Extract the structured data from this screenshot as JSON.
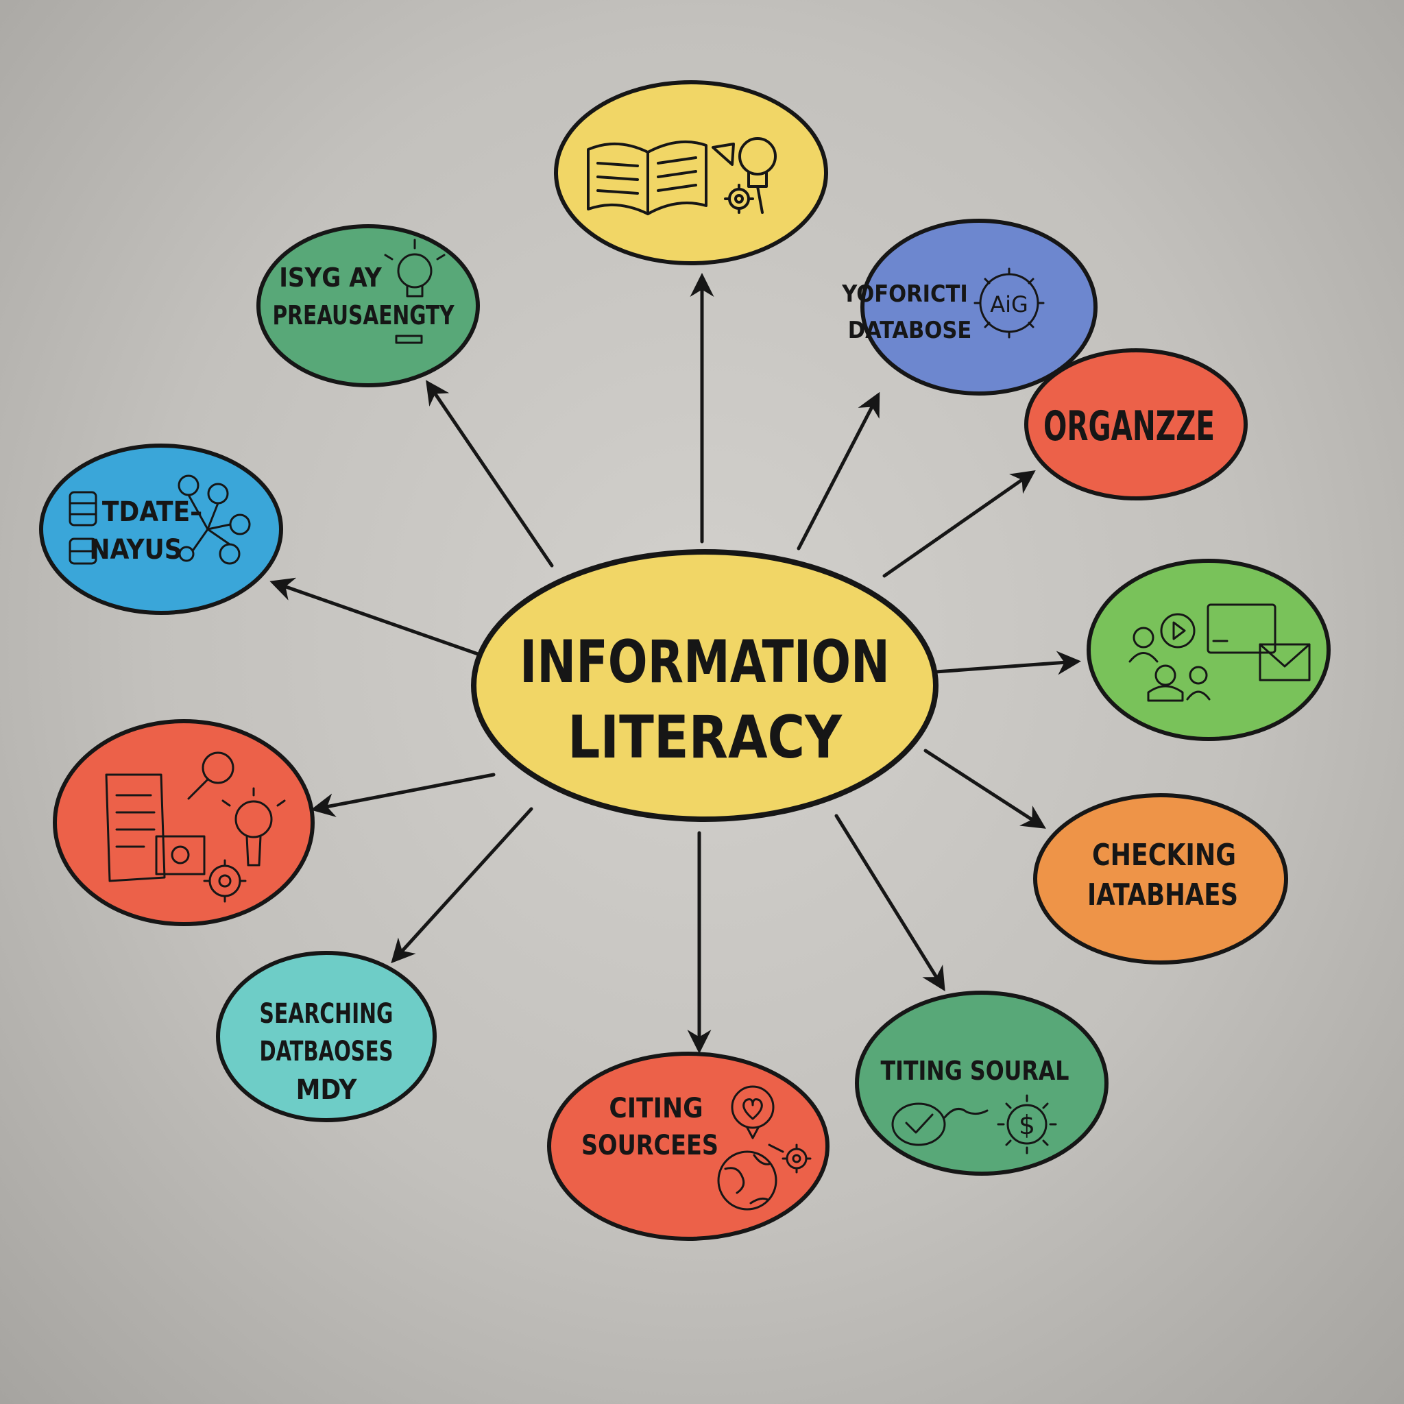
{
  "central": {
    "lines": [
      "INFORMATION",
      "LITERACY"
    ],
    "color": "#f1d666"
  },
  "nodes": [
    {
      "id": "top",
      "lines": [],
      "color": "#f1d666",
      "icons": [
        "open-book-icon",
        "lightbulb-icon",
        "gear-icon"
      ]
    },
    {
      "id": "top-left",
      "lines": [
        "ISYG AY",
        "PREAUSAENGTY"
      ],
      "color": "#58a878",
      "icons": [
        "lightbulb-icon"
      ]
    },
    {
      "id": "top-right",
      "lines": [
        "YOFORICTI",
        "DATABOSE"
      ],
      "color": "#6d87cf",
      "icons": [
        "ai-gear-icon"
      ]
    },
    {
      "id": "right-upper",
      "lines": [
        "ORGANZZE"
      ],
      "color": "#ec6149",
      "icons": []
    },
    {
      "id": "left-upper",
      "lines": [
        "TDATE–",
        "NAYUS"
      ],
      "color": "#3aa6d9",
      "icons": [
        "database-icon",
        "network-icon"
      ]
    },
    {
      "id": "right",
      "lines": [],
      "color": "#79c25a",
      "icons": [
        "user-icon",
        "video-icon",
        "monitor-icon",
        "mail-icon",
        "people-icon"
      ]
    },
    {
      "id": "left-lower",
      "lines": [],
      "color": "#ec6149",
      "icons": [
        "document-icon",
        "magnifier-icon",
        "photo-icon",
        "lightbulb-icon",
        "gear-icon"
      ]
    },
    {
      "id": "right-lower",
      "lines": [
        "CHECKING",
        "IATABHAES"
      ],
      "color": "#ee9448",
      "icons": []
    },
    {
      "id": "bottom-left",
      "lines": [
        "SEARCHING",
        "DATBAOSES",
        "MDY"
      ],
      "color": "#6ecdc7",
      "icons": []
    },
    {
      "id": "bottom",
      "lines": [
        "CITING",
        "SOURCEES"
      ],
      "color": "#ec6149",
      "icons": [
        "heart-pin-icon",
        "globe-icon",
        "gear-icon"
      ]
    },
    {
      "id": "bottom-right",
      "lines": [
        "TITING SOURAL"
      ],
      "color": "#58a878",
      "icons": [
        "check-bubble-icon",
        "dollar-gear-icon"
      ]
    }
  ]
}
